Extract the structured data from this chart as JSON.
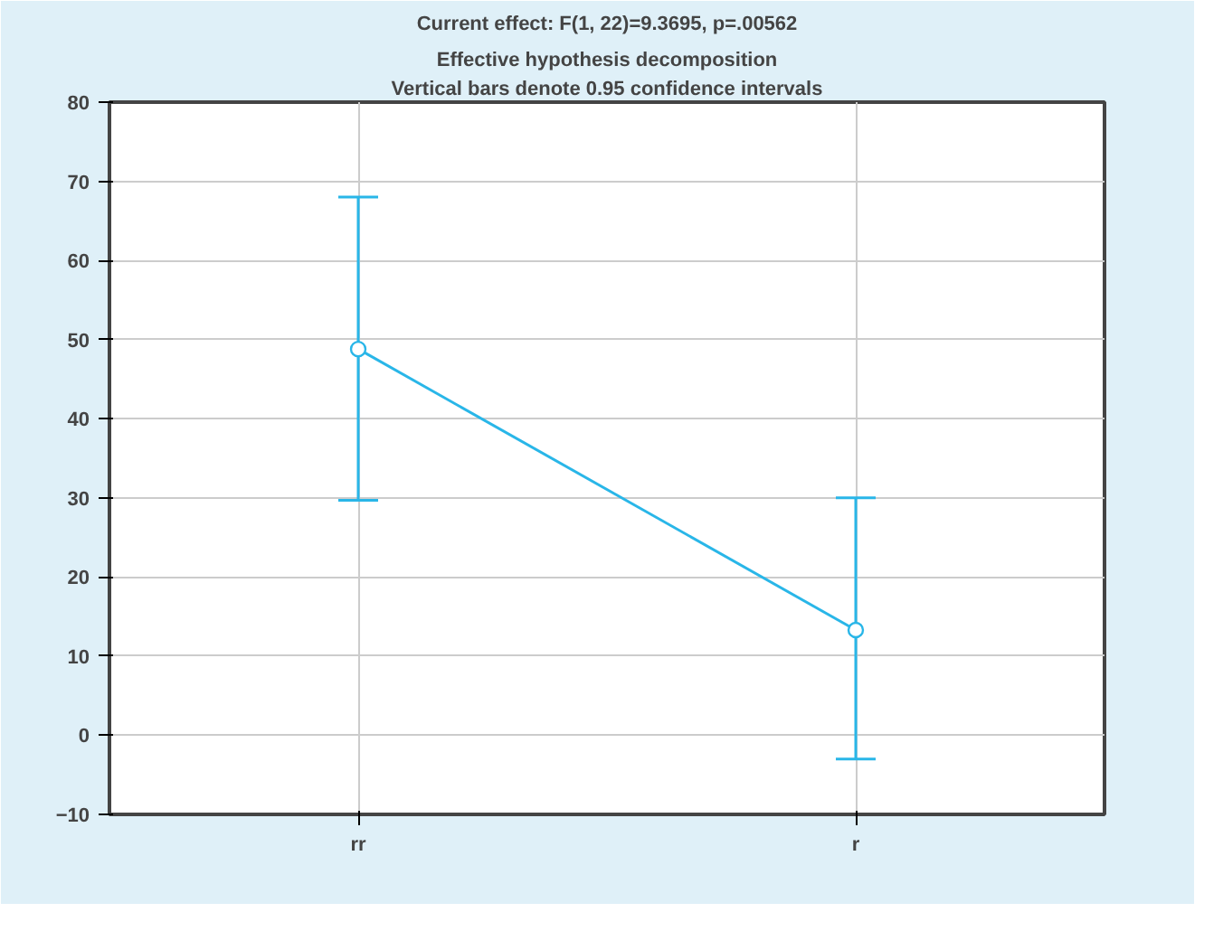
{
  "chart_data": {
    "type": "line",
    "title": "Current effect: F(1, 22)=9.3695, p=.00562",
    "subtitle": "Effective hypothesis decomposition",
    "annotations": [
      "Vertical bars denote 0.95 confidence intervals"
    ],
    "categories": [
      "rr",
      "r"
    ],
    "series": [
      {
        "color": "#29b6e8",
        "values": [
          48.8,
          13.3
        ],
        "errors": [
          [
            29.7,
            68
          ],
          [
            -3,
            30
          ]
        ]
      }
    ],
    "ylim": [
      -10,
      80
    ],
    "yticks": [
      -10,
      0,
      10,
      20,
      30,
      40,
      50,
      60,
      70,
      80
    ],
    "grid": true,
    "marker": "circle",
    "line_style": "solid"
  }
}
